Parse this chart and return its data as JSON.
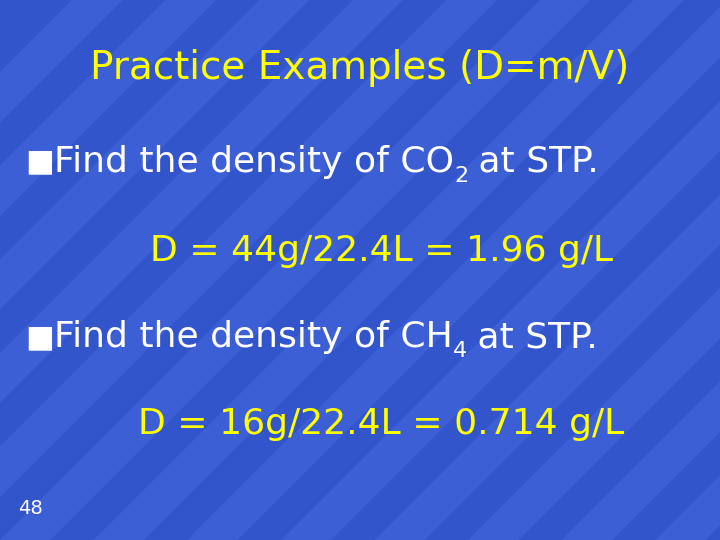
{
  "title": "Practice Examples (D=m/V)",
  "title_color": "#FFFF00",
  "title_fontsize": 28,
  "bg_color_main": "#3355CC",
  "stripe_color": "#5577EE",
  "stripe_alpha": 0.3,
  "text_white": "#FFFFFF",
  "text_yellow": "#FFFF00",
  "bullet": "■",
  "line1a": "Find the density of CO",
  "line1sub": "2",
  "line1b": " at STP.",
  "line2": "D = 44g/22.4L = 1.96 g/L",
  "line3a": "Find the density of CH",
  "line3sub": "4",
  "line3b": " at STP.",
  "line4": "D = 16g/22.4L = 0.714 g/L",
  "page_num": "48",
  "body_fs": 26,
  "ans_fs": 26,
  "page_fs": 14,
  "bullet_fs": 22
}
